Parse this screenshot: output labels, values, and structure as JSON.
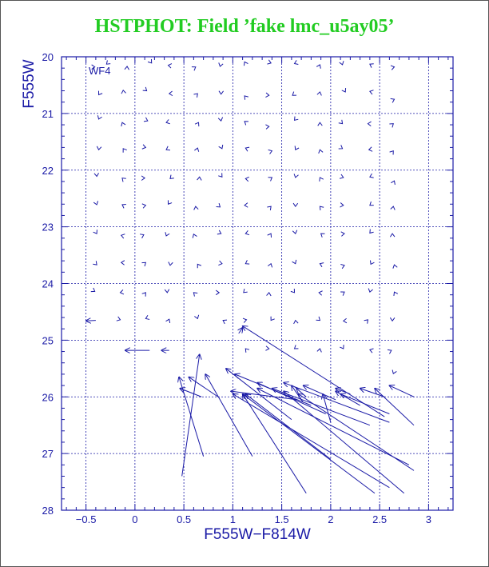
{
  "chart_data": {
    "type": "vector_field",
    "title": "HSTPHOT: Field ’fake lmc_u5ay05’",
    "panel_label": "WF4",
    "xlabel": "F555W−F814W",
    "ylabel": "F555W",
    "xlim": [
      -0.75,
      3.25
    ],
    "ylim": [
      28,
      20
    ],
    "y_inverted": true,
    "grid": true,
    "x_ticks": [
      -0.5,
      0,
      0.5,
      1,
      1.5,
      2,
      2.5,
      3
    ],
    "x_tick_labels": [
      "−0.5",
      "0",
      "0.5",
      "1",
      "1.5",
      "2",
      "2.5",
      "3"
    ],
    "y_ticks": [
      20,
      21,
      22,
      23,
      24,
      25,
      26,
      27,
      28
    ],
    "y_tick_labels": [
      "20",
      "21",
      "22",
      "23",
      "24",
      "25",
      "26",
      "27",
      "28"
    ],
    "colors": {
      "title": "#22cc22",
      "axes": "#1a1aa6",
      "data": "#1a1aa6"
    },
    "small_markers": [
      [
        -0.41,
        20.18
      ],
      [
        -0.29,
        20.13
      ],
      [
        -0.08,
        20.17
      ],
      [
        0.17,
        20.11
      ],
      [
        0.34,
        20.15
      ],
      [
        0.62,
        20.18
      ],
      [
        0.87,
        20.17
      ],
      [
        1.12,
        20.09
      ],
      [
        1.39,
        20.11
      ],
      [
        1.63,
        20.12
      ],
      [
        1.89,
        20.14
      ],
      [
        2.12,
        20.14
      ],
      [
        2.4,
        20.13
      ],
      [
        2.65,
        20.18
      ],
      [
        -0.37,
        20.67
      ],
      [
        -0.12,
        20.59
      ],
      [
        0.12,
        20.6
      ],
      [
        0.35,
        20.65
      ],
      [
        0.64,
        20.65
      ],
      [
        0.88,
        20.66
      ],
      [
        1.12,
        20.69
      ],
      [
        1.37,
        20.68
      ],
      [
        1.61,
        20.68
      ],
      [
        1.89,
        20.62
      ],
      [
        2.15,
        20.62
      ],
      [
        2.4,
        20.61
      ],
      [
        2.65,
        20.75
      ],
      [
        -0.37,
        21.1
      ],
      [
        -0.13,
        21.16
      ],
      [
        0.13,
        21.13
      ],
      [
        0.32,
        21.16
      ],
      [
        0.65,
        21.16
      ],
      [
        0.88,
        21.13
      ],
      [
        1.12,
        21.14
      ],
      [
        1.37,
        21.23
      ],
      [
        1.63,
        21.12
      ],
      [
        1.89,
        21.16
      ],
      [
        2.12,
        21.18
      ],
      [
        2.38,
        21.18
      ],
      [
        2.64,
        21.18
      ],
      [
        -0.37,
        21.64
      ],
      [
        -0.12,
        21.62
      ],
      [
        0.11,
        21.6
      ],
      [
        0.32,
        21.64
      ],
      [
        0.64,
        21.61
      ],
      [
        0.89,
        21.62
      ],
      [
        1.13,
        21.61
      ],
      [
        1.4,
        21.66
      ],
      [
        1.64,
        21.64
      ],
      [
        1.89,
        21.64
      ],
      [
        2.12,
        21.62
      ],
      [
        2.39,
        21.64
      ],
      [
        2.64,
        21.66
      ],
      [
        -0.39,
        22.11
      ],
      [
        -0.13,
        22.14
      ],
      [
        0.1,
        22.14
      ],
      [
        0.36,
        22.15
      ],
      [
        0.66,
        22.12
      ],
      [
        0.89,
        22.12
      ],
      [
        1.13,
        22.15
      ],
      [
        1.4,
        22.13
      ],
      [
        1.64,
        22.13
      ],
      [
        1.89,
        22.13
      ],
      [
        2.13,
        22.13
      ],
      [
        2.4,
        22.12
      ],
      [
        2.65,
        22.19
      ],
      [
        -0.39,
        22.61
      ],
      [
        -0.13,
        22.61
      ],
      [
        0.11,
        22.62
      ],
      [
        0.34,
        22.6
      ],
      [
        0.62,
        22.64
      ],
      [
        0.87,
        22.65
      ],
      [
        1.12,
        22.62
      ],
      [
        1.39,
        22.64
      ],
      [
        1.64,
        22.64
      ],
      [
        1.89,
        22.64
      ],
      [
        2.13,
        22.62
      ],
      [
        2.4,
        22.62
      ],
      [
        2.64,
        22.64
      ],
      [
        -0.39,
        23.12
      ],
      [
        -0.14,
        23.15
      ],
      [
        0.09,
        23.14
      ],
      [
        0.32,
        23.16
      ],
      [
        0.6,
        23.13
      ],
      [
        0.88,
        23.12
      ],
      [
        1.13,
        23.12
      ],
      [
        1.39,
        23.12
      ],
      [
        1.64,
        23.12
      ],
      [
        1.9,
        23.12
      ],
      [
        2.14,
        23.12
      ],
      [
        2.4,
        23.11
      ],
      [
        2.63,
        23.12
      ],
      [
        -0.39,
        23.67
      ],
      [
        -0.14,
        23.63
      ],
      [
        0.11,
        23.63
      ],
      [
        0.36,
        23.68
      ],
      [
        0.64,
        23.66
      ],
      [
        0.89,
        23.65
      ],
      [
        1.13,
        23.65
      ],
      [
        1.39,
        23.65
      ],
      [
        1.64,
        23.65
      ],
      [
        1.89,
        23.65
      ],
      [
        2.14,
        23.68
      ],
      [
        2.41,
        23.66
      ],
      [
        2.65,
        23.67
      ],
      [
        -0.41,
        24.14
      ],
      [
        -0.15,
        24.16
      ],
      [
        0.11,
        24.16
      ],
      [
        0.33,
        24.16
      ],
      [
        0.6,
        24.16
      ],
      [
        0.86,
        24.16
      ],
      [
        1.11,
        24.16
      ],
      [
        1.37,
        24.16
      ],
      [
        1.63,
        24.16
      ],
      [
        1.88,
        24.16
      ],
      [
        2.14,
        24.15
      ],
      [
        2.4,
        24.15
      ],
      [
        2.65,
        24.15
      ],
      [
        -0.15,
        24.64
      ],
      [
        0.11,
        24.62
      ],
      [
        0.35,
        24.63
      ],
      [
        0.64,
        24.62
      ],
      [
        0.9,
        24.65
      ],
      [
        1.14,
        24.64
      ],
      [
        1.39,
        24.65
      ],
      [
        1.64,
        24.65
      ],
      [
        1.89,
        24.65
      ],
      [
        2.13,
        24.66
      ],
      [
        2.38,
        24.64
      ],
      [
        2.63,
        24.66
      ],
      [
        1.13,
        25.15
      ],
      [
        1.37,
        25.15
      ],
      [
        1.63,
        25.15
      ],
      [
        1.89,
        25.15
      ],
      [
        2.13,
        25.15
      ],
      [
        2.4,
        25.17
      ],
      [
        2.62,
        25.18
      ],
      [
        2.64,
        25.59
      ]
    ],
    "vectors": [
      [
        -0.4,
        24.65,
        -0.5,
        24.66
      ],
      [
        0.15,
        25.18,
        -0.1,
        25.18
      ],
      [
        0.35,
        25.18,
        0.27,
        25.18
      ],
      [
        1.06,
        24.88,
        1.1,
        24.78
      ],
      [
        2.55,
        26.35,
        1.1,
        24.75
      ],
      [
        0.48,
        27.4,
        0.66,
        25.25
      ],
      [
        0.7,
        27.05,
        0.45,
        25.65
      ],
      [
        0.68,
        26.0,
        0.46,
        25.85
      ],
      [
        0.85,
        26.0,
        0.55,
        25.65
      ],
      [
        1.2,
        27.05,
        0.72,
        25.6
      ],
      [
        1.75,
        27.7,
        1.1,
        25.95
      ],
      [
        1.65,
        26.05,
        0.98,
        25.9
      ],
      [
        1.6,
        26.4,
        0.93,
        25.5
      ],
      [
        1.8,
        26.15,
        1.02,
        25.6
      ],
      [
        1.95,
        26.3,
        1.25,
        25.75
      ],
      [
        2.6,
        27.6,
        1.0,
        25.95
      ],
      [
        2.45,
        27.7,
        1.1,
        25.95
      ],
      [
        2.0,
        27.1,
        1.13,
        25.95
      ],
      [
        2.8,
        27.2,
        1.25,
        25.85
      ],
      [
        2.4,
        26.5,
        1.4,
        25.85
      ],
      [
        2.6,
        26.45,
        1.52,
        25.75
      ],
      [
        2.75,
        27.7,
        1.52,
        25.9
      ],
      [
        2.85,
        27.3,
        1.67,
        25.95
      ],
      [
        1.72,
        26.1,
        1.6,
        25.8
      ],
      [
        1.75,
        26.0,
        1.65,
        25.85
      ],
      [
        2.05,
        26.05,
        1.72,
        25.8
      ],
      [
        2.0,
        26.45,
        1.92,
        25.95
      ],
      [
        2.3,
        26.15,
        2.05,
        25.9
      ],
      [
        2.2,
        25.95,
        2.05,
        25.85
      ],
      [
        2.6,
        26.3,
        2.1,
        25.95
      ],
      [
        2.55,
        26.0,
        2.3,
        25.85
      ],
      [
        2.85,
        26.5,
        2.45,
        25.85
      ],
      [
        2.85,
        26.0,
        2.6,
        25.8
      ]
    ]
  }
}
